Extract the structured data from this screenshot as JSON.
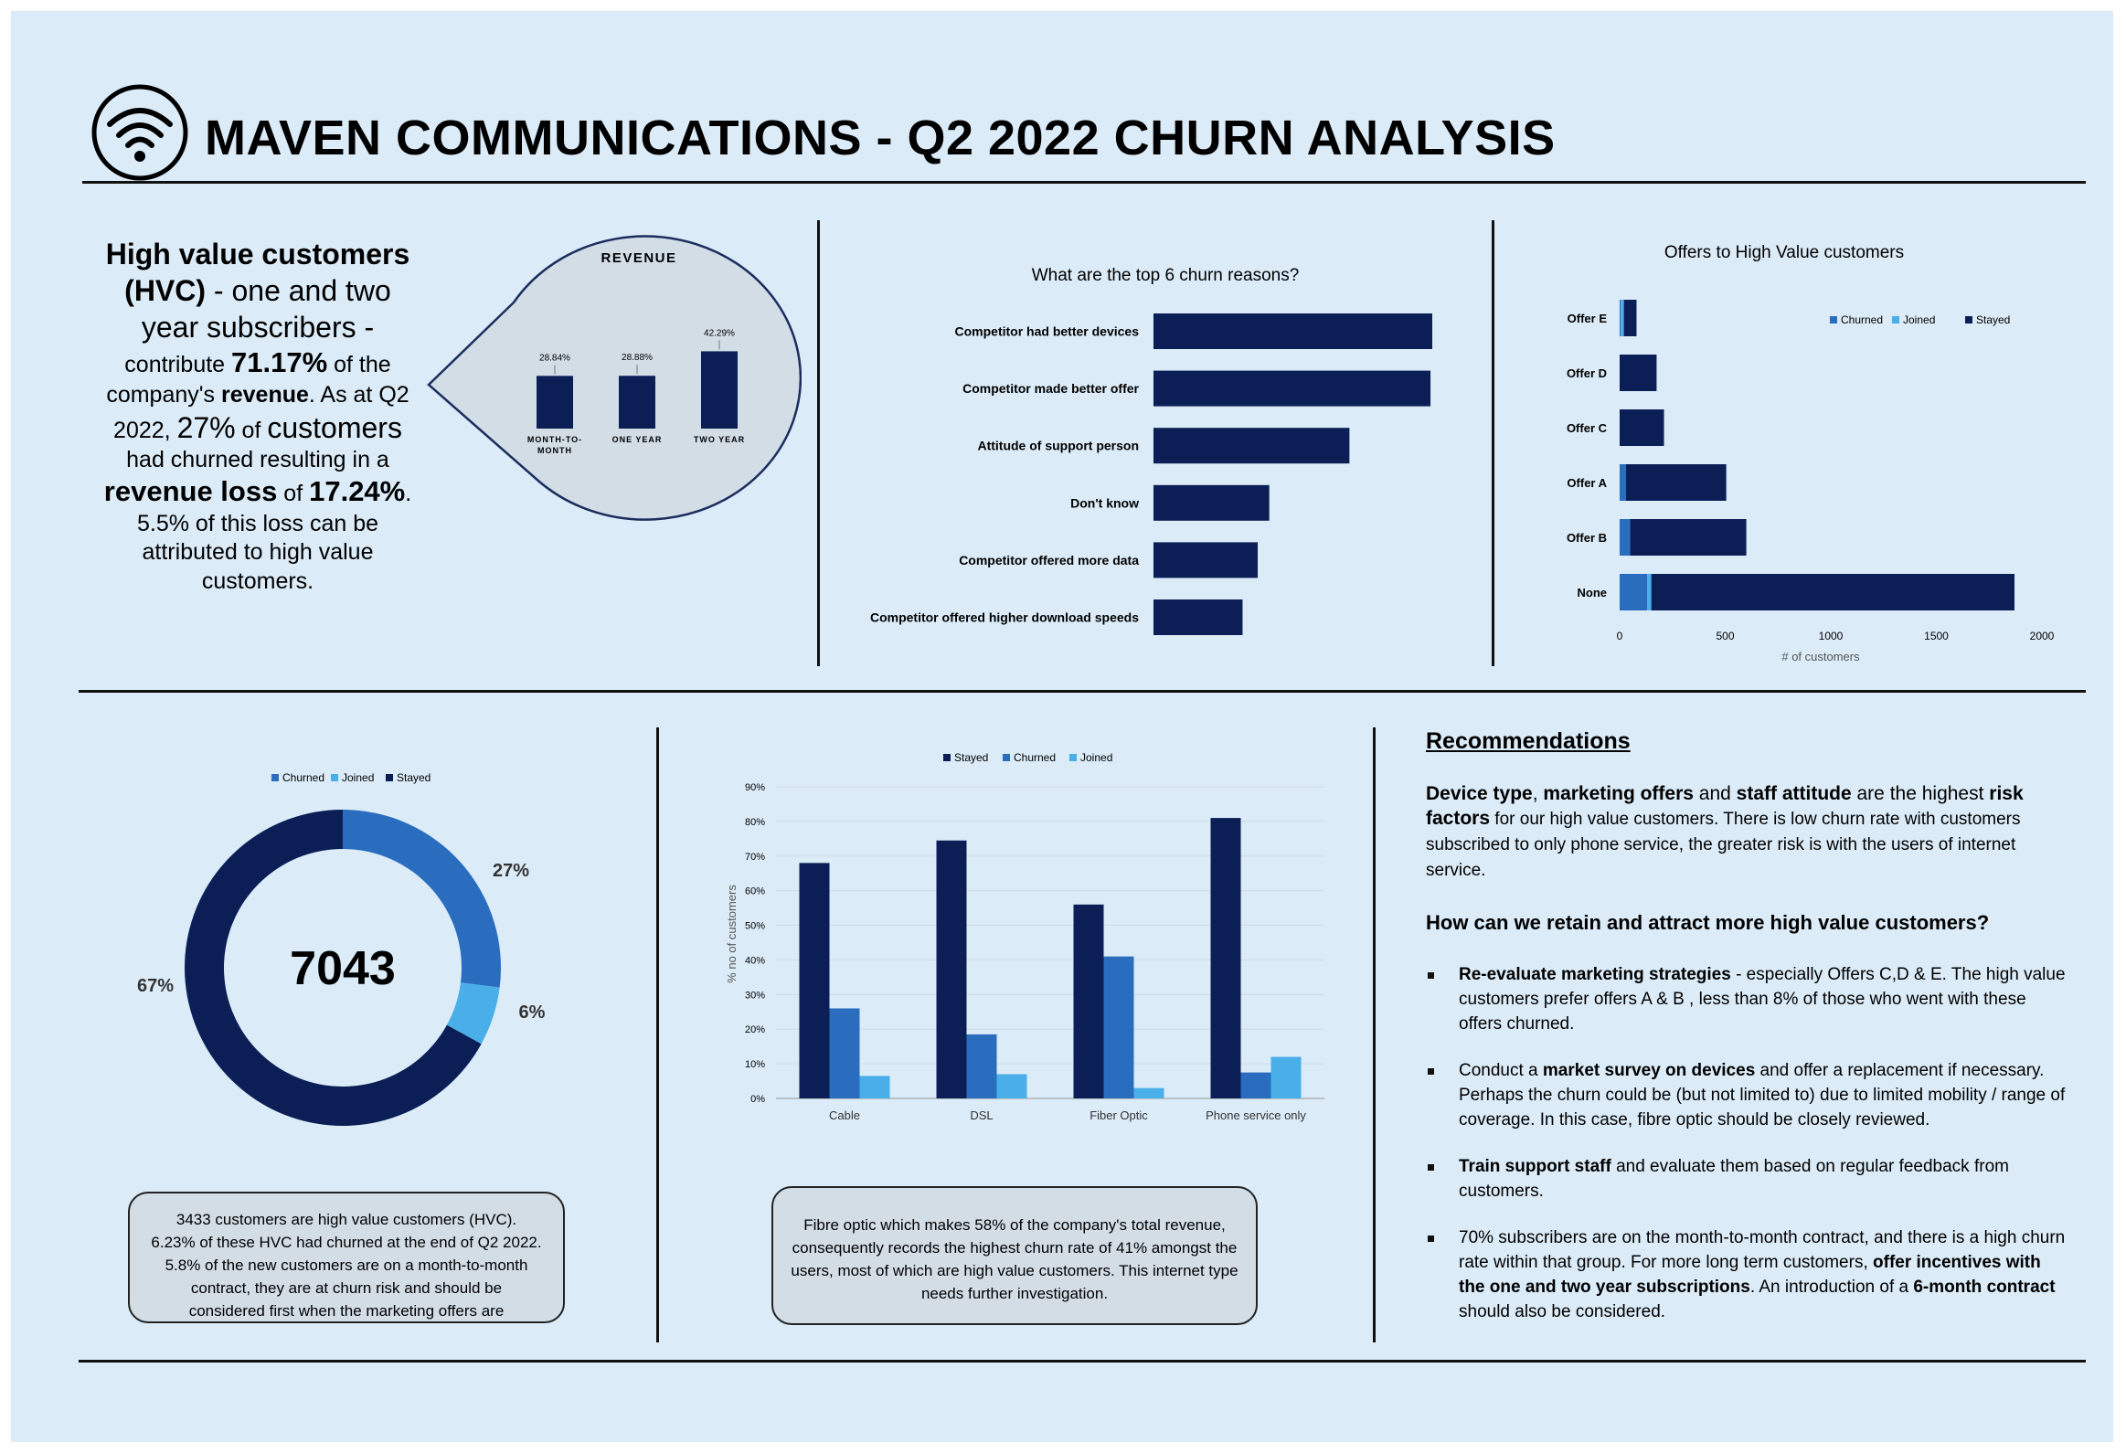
{
  "header": {
    "title": "MAVEN COMMUNICATIONS - Q2 2022 CHURN ANALYSIS",
    "logo_icon": "wifi-icon"
  },
  "summary": {
    "l1": "High value customers",
    "l2a": "(HVC)",
    "l2b": " - one and two",
    "l3": "year subscribers -",
    "l4a": "contribute ",
    "l4b": "71.17%",
    "l4c": " of the",
    "l5a": "company's ",
    "l5b": "revenue",
    "l5c": ". As at Q2",
    "l6a": "2022, ",
    "l6b": "27%",
    "l6c": " of ",
    "l6d": "customers",
    "l7": "had churned resulting in a",
    "l8a": "revenue loss",
    "l8b": " of ",
    "l8c": "17.24%",
    "l8d": ".",
    "l9": "5.5% of this loss can be",
    "l10": "attributed to high value",
    "l11": "customers."
  },
  "colors": {
    "stayed": "#0b1f56",
    "churned": "#2a6dbf",
    "joined": "#4aaee8",
    "background": "#dbebf7"
  },
  "chart_data": [
    {
      "id": "revenue",
      "type": "bar",
      "title": "REVENUE",
      "categories": [
        "MONTH-TO-MONTH",
        "ONE YEAR",
        "TWO YEAR"
      ],
      "category_lines": [
        [
          "MONTH-TO-",
          "MONTH"
        ],
        [
          "ONE YEAR"
        ],
        [
          "TWO YEAR"
        ]
      ],
      "values": [
        28.84,
        28.88,
        42.29
      ],
      "data_labels": [
        "28.84%",
        "28.88%",
        "42.29%"
      ]
    },
    {
      "id": "churn-reasons",
      "type": "bar",
      "orientation": "horizontal",
      "title": "What are the top 6 churn reasons?",
      "categories": [
        "Competitor had better devices",
        "Competitor made better offer",
        "Attitude of support person",
        "Don't know",
        "Competitor offered more data",
        "Competitor offered higher download speeds"
      ],
      "values": [
        313,
        311,
        220,
        130,
        117,
        100
      ]
    },
    {
      "id": "offers",
      "type": "bar",
      "orientation": "horizontal",
      "stacked": true,
      "title": "Offers to High Value customers",
      "categories": [
        "Offer E",
        "Offer D",
        "Offer C",
        "Offer A",
        "Offer B",
        "None"
      ],
      "series": [
        {
          "name": "Churned",
          "values": [
            5,
            0,
            0,
            30,
            50,
            130
          ]
        },
        {
          "name": "Joined",
          "values": [
            15,
            0,
            0,
            0,
            0,
            20
          ]
        },
        {
          "name": "Stayed",
          "values": [
            60,
            175,
            210,
            475,
            550,
            1720
          ]
        }
      ],
      "xlim": [
        0,
        2000
      ],
      "x_ticks": [
        "0",
        "500",
        "1000",
        "1500",
        "2000"
      ],
      "xlabel": "# of customers",
      "legend_position": "top-right"
    },
    {
      "id": "customer-status",
      "type": "pie",
      "donut": true,
      "center_label": "7043",
      "categories": [
        "Churned",
        "Joined",
        "Stayed"
      ],
      "values": [
        27,
        6,
        67
      ],
      "data_labels": [
        "27%",
        "6%",
        "67%"
      ],
      "legend_position": "top"
    },
    {
      "id": "internet-type",
      "type": "bar",
      "categories": [
        "Cable",
        "DSL",
        "Fiber Optic",
        "Phone service only"
      ],
      "series": [
        {
          "name": "Stayed",
          "values": [
            68,
            74.5,
            56,
            81
          ]
        },
        {
          "name": "Churned",
          "values": [
            26,
            18.5,
            41,
            7.5
          ]
        },
        {
          "name": "Joined",
          "values": [
            6.5,
            7,
            3,
            12
          ]
        }
      ],
      "ylim": [
        0,
        90
      ],
      "y_ticks": [
        "0%",
        "10%",
        "20%",
        "30%",
        "40%",
        "50%",
        "60%",
        "70%",
        "80%",
        "90%"
      ],
      "ylabel": "% no of customers",
      "legend_position": "top"
    }
  ],
  "notes": {
    "donut_note": [
      "3433 customers are high value customers (HVC).",
      "6.23% of these HVC had churned  at the end of Q2 2022.",
      "5.8% of the new customers are on a month-to-month",
      "contract, they are at churn risk and should be",
      "considered first when the marketing offers are"
    ],
    "fibre_note": [
      "Fibre optic which makes 58% of the company's total revenue,",
      "consequently records  the highest churn rate of 41% amongst the",
      "users, most of which are high value customers. This internet type",
      "needs further investigation."
    ]
  },
  "recommendations": {
    "heading": "Recommendations",
    "lead": {
      "b1": "Device type",
      "t1": ", ",
      "b2": "marketing offers",
      "t2": " and  ",
      "b3": "staff  attitude",
      "t3": " are the highest ",
      "b4": "risk factors",
      "t4": " for our high value customers. There is low churn rate with customers subscribed  to only phone service, the greater risk is with the users of internet service."
    },
    "question": "How can we retain and attract more high value customers?",
    "items": [
      {
        "bold": "Re-evaluate marketing strategies",
        "text": " - especially Offers C,D & E. The high value customers prefer offers A & B , less than 8% of those who went with these offers churned."
      },
      {
        "pre": "Conduct  a ",
        "bold": "market survey on devices",
        "text": " and offer a replacement if necessary. Perhaps the churn could be (but not limited to) due to limited mobility / range of coverage. In this case, fibre optic should be closely reviewed."
      },
      {
        "bold": "Train support staff",
        "text": " and evaluate them based on regular feedback from customers."
      },
      {
        "pre": "70% subscribers  are on the month-to-month contract, and there is a high churn rate within that group. For more long term customers, ",
        "bold": "offer incentives with the one and two year subscriptions",
        "text": ". An introduction of a ",
        "bold2": "6-month contract",
        "text2": " should also be considered."
      }
    ]
  }
}
